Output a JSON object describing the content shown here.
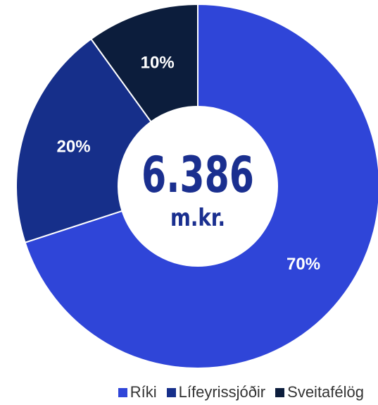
{
  "chart_data": {
    "type": "pie",
    "variant": "donut",
    "categories": [
      "Ríki",
      "Lífeyrissjóðir",
      "Sveitafélög"
    ],
    "values": [
      70,
      20,
      10
    ],
    "labels": [
      "70%",
      "20%",
      "10%"
    ],
    "colors": [
      "#2f45d8",
      "#162f8a",
      "#0c1d3c"
    ],
    "center_value": "6.386",
    "center_unit": "m.kr.",
    "center_color": "#1a2f8f",
    "legend_position": "bottom-right",
    "start_angle_deg": 0,
    "direction": "clockwise"
  },
  "legend": {
    "items": [
      {
        "label": "Ríki",
        "color": "#2f45d8"
      },
      {
        "label": "Lífeyrissjóðir",
        "color": "#162f8a"
      },
      {
        "label": "Sveitafélög",
        "color": "#0c1d3c"
      }
    ]
  }
}
